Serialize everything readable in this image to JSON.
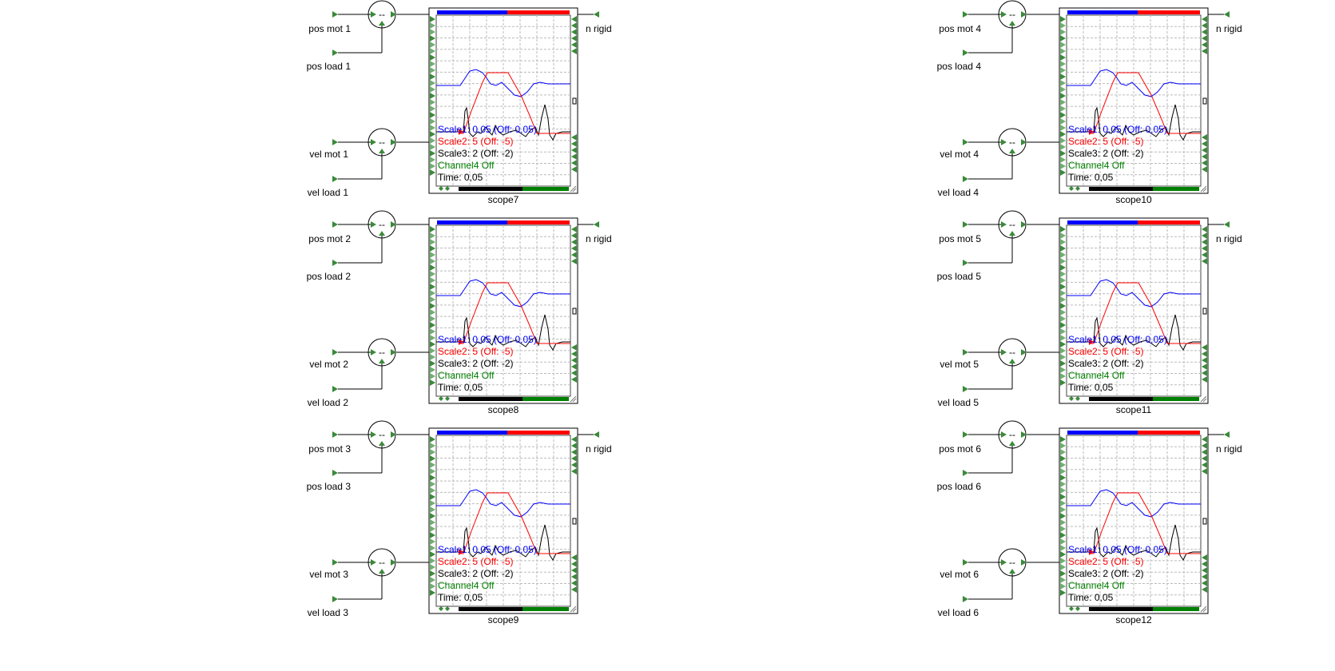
{
  "diagram": {
    "junction_symbol": "--",
    "scale_lines": [
      {
        "text": "Scale1: 0,05 (Off: 0,05)",
        "color": "#0000ff"
      },
      {
        "text": "Scale2: 5 (Off: -5)",
        "color": "#ff0000"
      },
      {
        "text": "Scale3: 2 (Off: -2)",
        "color": "#000000"
      },
      {
        "text": "Channel4 Off",
        "color": "#008000"
      },
      {
        "text": "Time: 0,05",
        "color": "#000000"
      }
    ],
    "colors": {
      "wire": "#000000",
      "port": "#3a8a3a",
      "channel1": "#0000ff",
      "channel2": "#ff0000",
      "channel3": "#000000",
      "channel4": "#008000",
      "grid": "#bbbbbb"
    },
    "blocks": [
      {
        "scope": "scope7",
        "pos_mot": "pos mot 1",
        "pos_load": "pos load 1",
        "vel_mot": "vel mot 1",
        "vel_load": "vel load 1",
        "output": "n rigid"
      },
      {
        "scope": "scope8",
        "pos_mot": "pos mot 2",
        "pos_load": "pos load 2",
        "vel_mot": "vel mot 2",
        "vel_load": "vel load 2",
        "output": "n rigid"
      },
      {
        "scope": "scope9",
        "pos_mot": "pos mot 3",
        "pos_load": "pos load 3",
        "vel_mot": "vel mot 3",
        "vel_load": "vel load 3",
        "output": "n rigid"
      },
      {
        "scope": "scope10",
        "pos_mot": "pos mot 4",
        "pos_load": "pos load 4",
        "vel_mot": "vel mot 4",
        "vel_load": "vel load 4",
        "output": "n rigid"
      },
      {
        "scope": "scope11",
        "pos_mot": "pos mot 5",
        "pos_load": "pos load 5",
        "vel_mot": "vel mot 5",
        "vel_load": "vel load 5",
        "output": "n rigid"
      },
      {
        "scope": "scope12",
        "pos_mot": "pos mot 6",
        "pos_load": "pos load 6",
        "vel_mot": "vel mot 6",
        "vel_load": "vel load 6",
        "output": "n rigid"
      }
    ]
  }
}
